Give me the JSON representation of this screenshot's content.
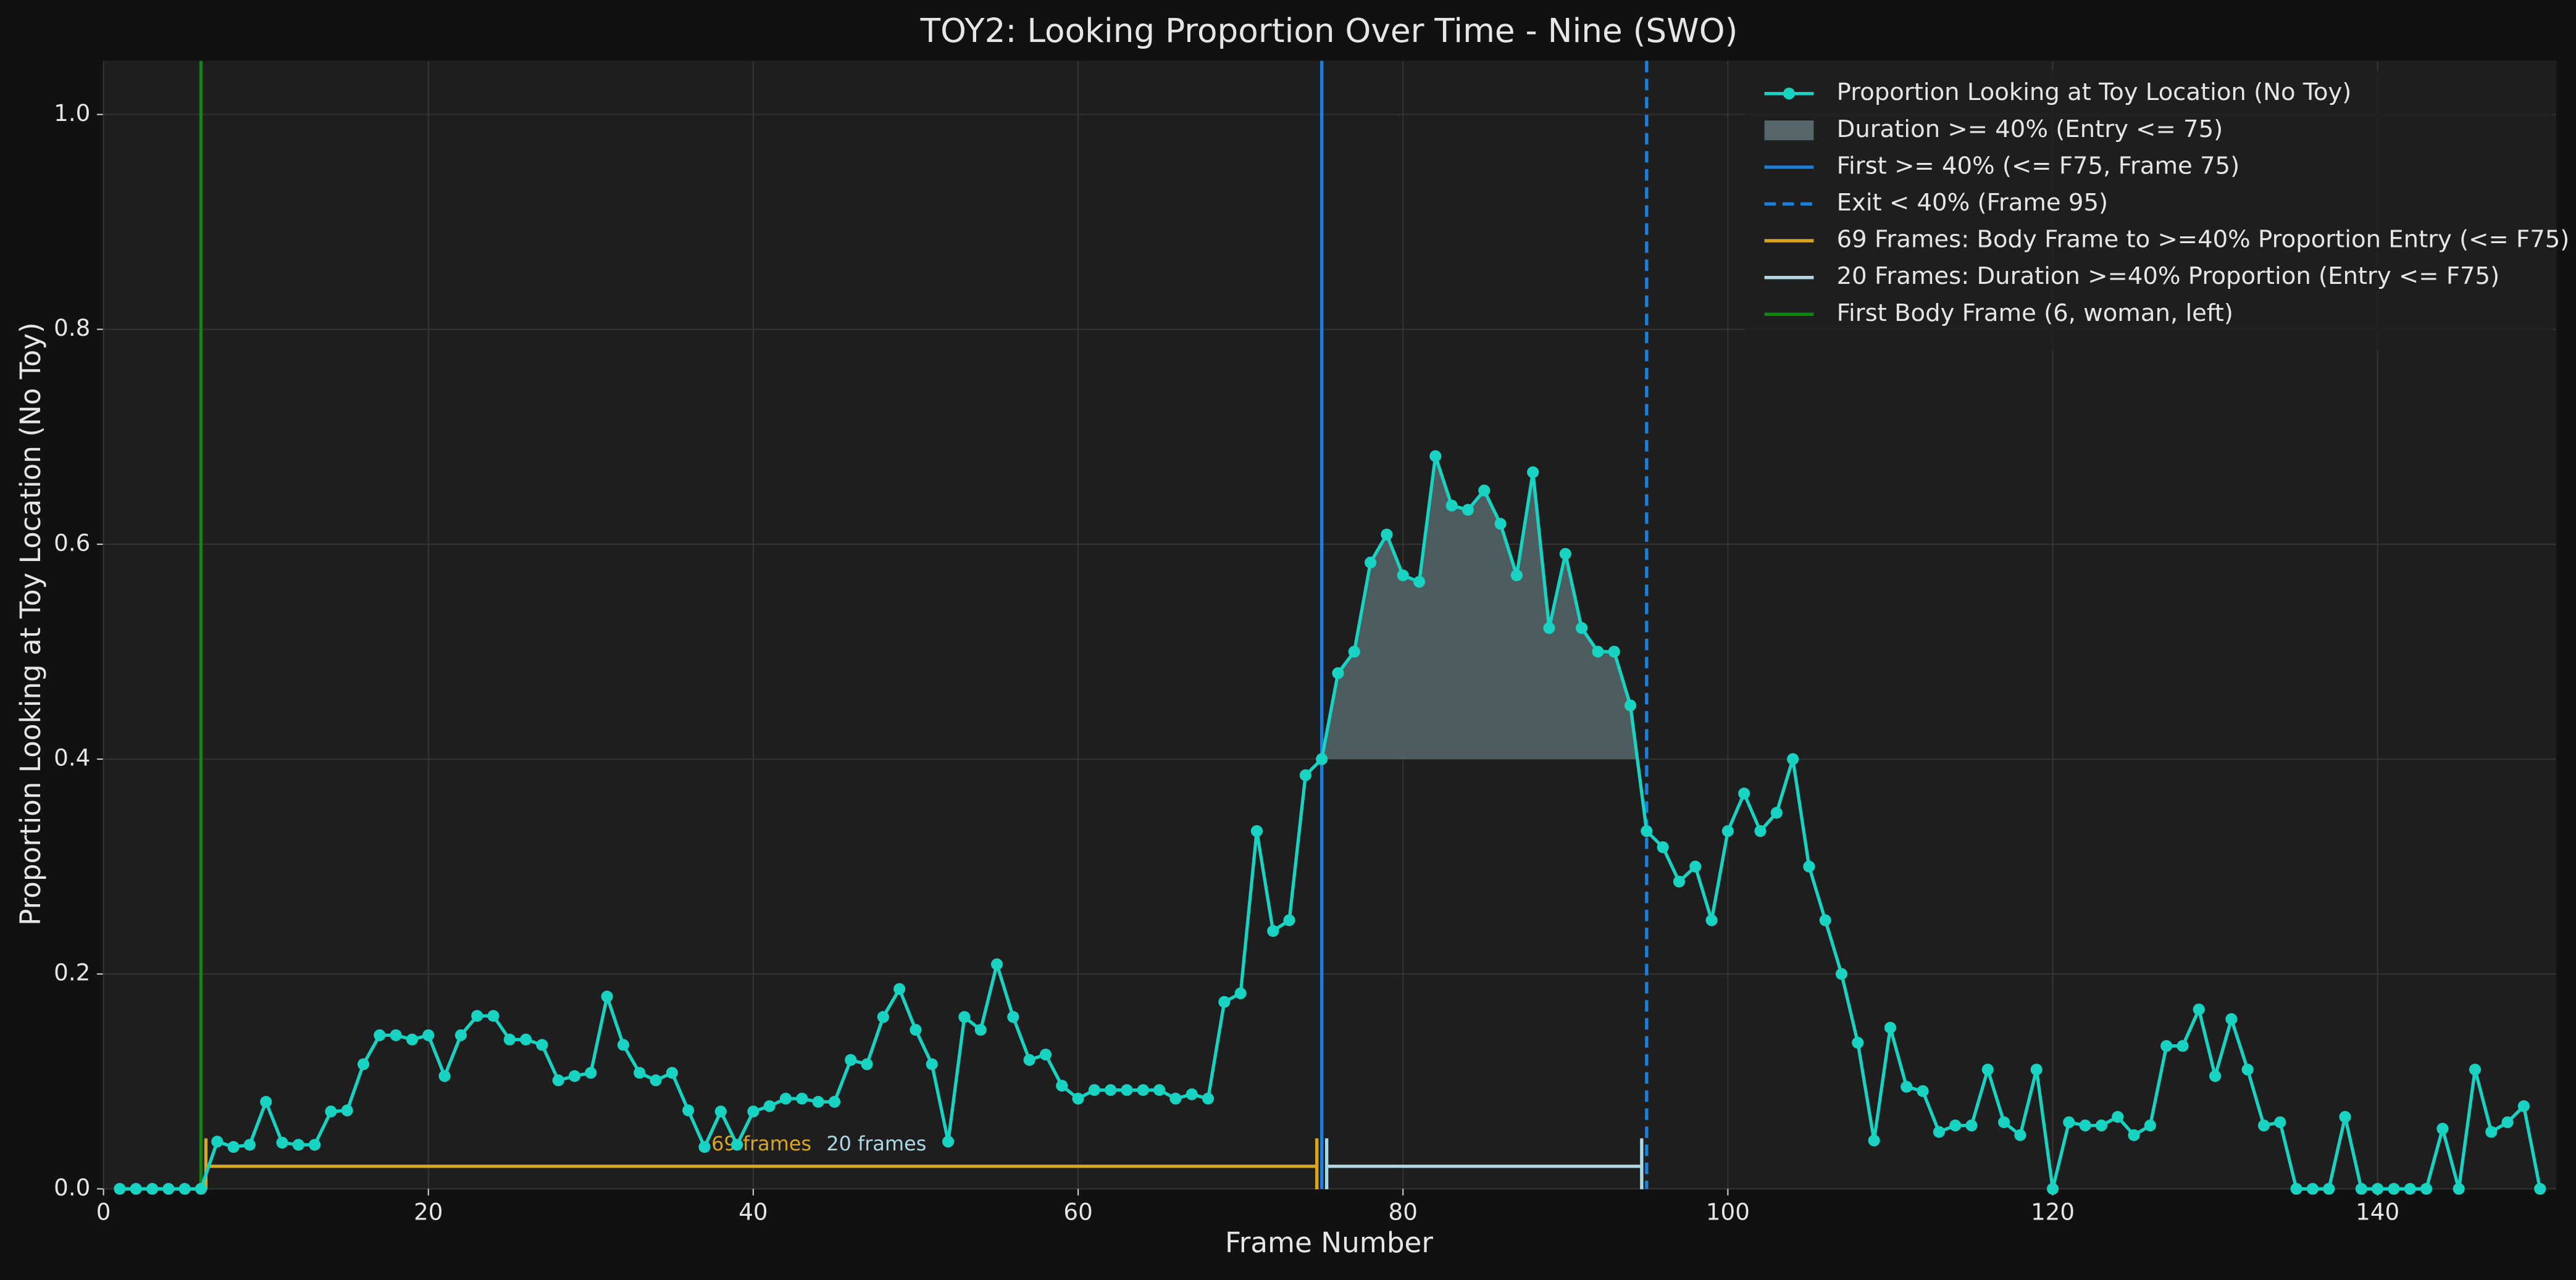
{
  "chart_data": {
    "type": "line",
    "title": "TOY2: Looking Proportion Over Time - Nine (SWO)",
    "x_label": "Frame Number",
    "y_label": "Proportion Looking at Toy Location (No Toy)",
    "x": [
      1,
      2,
      3,
      4,
      5,
      6,
      7,
      8,
      9,
      10,
      11,
      12,
      13,
      14,
      15,
      16,
      17,
      18,
      19,
      20,
      21,
      22,
      23,
      24,
      25,
      26,
      27,
      28,
      29,
      30,
      31,
      32,
      33,
      34,
      35,
      36,
      37,
      38,
      39,
      40,
      41,
      42,
      43,
      44,
      45,
      46,
      47,
      48,
      49,
      50,
      51,
      52,
      53,
      54,
      55,
      56,
      57,
      58,
      59,
      60,
      61,
      62,
      63,
      64,
      65,
      66,
      67,
      68,
      69,
      70,
      71,
      72,
      73,
      74,
      75,
      76,
      77,
      78,
      79,
      80,
      81,
      82,
      83,
      84,
      85,
      86,
      87,
      88,
      89,
      90,
      91,
      92,
      93,
      94,
      95,
      96,
      97,
      98,
      99,
      100,
      101,
      102,
      103,
      104,
      105,
      106,
      107,
      108,
      109,
      110,
      111,
      112,
      113,
      114,
      115,
      116,
      117,
      118,
      119,
      120,
      121,
      122,
      123,
      124,
      125,
      126,
      127,
      128,
      129,
      130,
      131,
      132,
      133,
      134,
      135,
      136,
      137,
      138,
      139,
      140,
      141,
      142,
      143,
      144,
      145,
      146,
      147,
      148,
      149,
      150
    ],
    "series": [
      {
        "name": "Proportion Looking at Toy Location (No Toy)",
        "color": "#19d3c2",
        "values": [
          0,
          0,
          0,
          0,
          0,
          0,
          0.044,
          0.039,
          0.041,
          0.081,
          0.043,
          0.041,
          0.041,
          0.072,
          0.073,
          0.116,
          0.143,
          0.143,
          0.139,
          0.143,
          0.105,
          0.143,
          0.161,
          0.161,
          0.139,
          0.139,
          0.134,
          0.101,
          0.105,
          0.108,
          0.179,
          0.134,
          0.108,
          0.101,
          0.108,
          0.073,
          0.039,
          0.072,
          0.041,
          0.072,
          0.077,
          0.084,
          0.084,
          0.081,
          0.081,
          0.12,
          0.116,
          0.16,
          0.186,
          0.148,
          0.116,
          0.044,
          0.16,
          0.148,
          0.209,
          0.16,
          0.12,
          0.125,
          0.096,
          0.084,
          0.092,
          0.092,
          0.092,
          0.092,
          0.092,
          0.084,
          0.088,
          0.084,
          0.174,
          0.182,
          0.333,
          0.24,
          0.25,
          0.385,
          0.4,
          0.48,
          0.5,
          0.583,
          0.609,
          0.571,
          0.565,
          0.682,
          0.636,
          0.632,
          0.65,
          0.619,
          0.571,
          0.667,
          0.522,
          0.591,
          0.522,
          0.5,
          0.5,
          0.45,
          0.333,
          0.318,
          0.286,
          0.3,
          0.25,
          0.333,
          0.368,
          0.333,
          0.35,
          0.4,
          0.3,
          0.25,
          0.2,
          0.136,
          0.045,
          0.15,
          0.095,
          0.091,
          0.053,
          0.059,
          0.059,
          0.111,
          0.062,
          0.05,
          0.111,
          0,
          0.062,
          0.059,
          0.059,
          0.067,
          0.05,
          0.059,
          0.133,
          0.133,
          0.167,
          0.105,
          0.158,
          0.111,
          0.059,
          0.062,
          0,
          0,
          0,
          0.067,
          0,
          0,
          0,
          0,
          0,
          0.056,
          0,
          0.111,
          0.053,
          0.062,
          0.077,
          0
        ]
      }
    ],
    "fill": {
      "name": "Duration >= 40% (Entry <= 75)",
      "color": "#55676b",
      "threshold": 0.4,
      "range": [
        75,
        95
      ]
    },
    "vlines": [
      {
        "name": "First >= 40% (<= F75, Frame 75)",
        "x": 75,
        "color": "#1f7fd6",
        "dashed": false
      },
      {
        "name": "Exit < 40% (Frame 95)",
        "x": 95,
        "color": "#1f7fd6",
        "dashed": true
      },
      {
        "name": "First Body Frame (6, woman, left)",
        "x": 6,
        "color": "#0a8a0a",
        "dashed": false
      }
    ],
    "brackets": [
      {
        "name": "69 Frames: Body Frame to >=40% Proportion Entry (<= F75)",
        "label": "69 frames",
        "color": "#daa520",
        "start": 6,
        "end": 75,
        "y": 0.021
      },
      {
        "name": "20 Frames: Duration >=40% Proportion (Entry <= F75)",
        "label": "20 frames",
        "color": "#add8e6",
        "start": 75,
        "end": 95,
        "y": 0.021
      }
    ],
    "xlim": [
      0,
      151
    ],
    "ylim": [
      0,
      1.05
    ],
    "xticks": [
      0,
      20,
      40,
      60,
      80,
      100,
      120,
      140
    ],
    "yticks": [
      {
        "value": 0,
        "label": "0.0"
      },
      0.2,
      0.4,
      0.6,
      0.8,
      {
        "value": 1,
        "label": "1.0"
      }
    ],
    "grid": true,
    "legend": "upper right"
  }
}
